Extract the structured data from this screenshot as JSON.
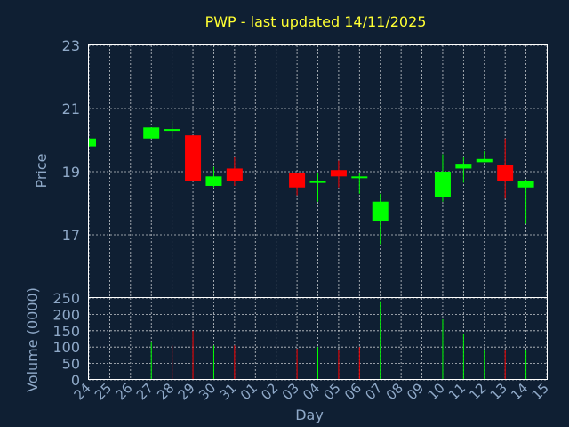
{
  "chart_data": {
    "title": "PWP - last updated 14/11/2025",
    "xlabel": "Day",
    "x": [
      "24",
      "25",
      "26",
      "27",
      "28",
      "29",
      "30",
      "31",
      "01",
      "02",
      "03",
      "04",
      "05",
      "06",
      "07",
      "08",
      "09",
      "10",
      "11",
      "12",
      "13",
      "14",
      "15"
    ],
    "price_panel": {
      "type": "candlestick",
      "ylabel": "Price",
      "ylim": [
        15,
        23
      ],
      "yticks": [
        "17",
        "19",
        "21",
        "23"
      ],
      "grid": true,
      "colors": {
        "up": "#00ff00",
        "down": "#ff0000"
      },
      "candles": [
        {
          "x": "24",
          "open": 19.8,
          "high": 20.05,
          "low": 19.8,
          "close": 20.05
        },
        {
          "x": "27",
          "open": 20.05,
          "high": 20.4,
          "low": 20.05,
          "close": 20.4
        },
        {
          "x": "28",
          "open": 20.35,
          "high": 20.6,
          "low": 20.05,
          "close": 20.35
        },
        {
          "x": "29",
          "open": 20.15,
          "high": 20.15,
          "low": 18.7,
          "close": 18.7
        },
        {
          "x": "30",
          "open": 18.55,
          "high": 19.15,
          "low": 18.5,
          "close": 18.85
        },
        {
          "x": "31",
          "open": 19.1,
          "high": 19.45,
          "low": 18.55,
          "close": 18.7
        },
        {
          "x": "03",
          "open": 18.95,
          "high": 18.95,
          "low": 18.25,
          "close": 18.5
        },
        {
          "x": "04",
          "open": 18.65,
          "high": 18.95,
          "low": 18.05,
          "close": 18.7
        },
        {
          "x": "05",
          "open": 19.05,
          "high": 19.35,
          "low": 18.5,
          "close": 18.85
        },
        {
          "x": "06",
          "open": 18.85,
          "high": 18.95,
          "low": 18.3,
          "close": 18.85
        },
        {
          "x": "07",
          "open": 17.45,
          "high": 18.3,
          "low": 16.7,
          "close": 18.05
        },
        {
          "x": "10",
          "open": 18.2,
          "high": 19.55,
          "low": 18.05,
          "close": 19.0
        },
        {
          "x": "11",
          "open": 19.1,
          "high": 19.45,
          "low": 18.65,
          "close": 19.25
        },
        {
          "x": "12",
          "open": 19.3,
          "high": 19.65,
          "low": 19.3,
          "close": 19.4
        },
        {
          "x": "13",
          "open": 19.2,
          "high": 20.05,
          "low": 18.15,
          "close": 18.7
        },
        {
          "x": "14",
          "open": 18.5,
          "high": 18.75,
          "low": 17.35,
          "close": 18.7
        }
      ]
    },
    "volume_panel": {
      "type": "bar",
      "ylabel": "Volume (0000)",
      "ylim": [
        0,
        250
      ],
      "yticks": [
        "0",
        "50",
        "100",
        "150",
        "200",
        "250"
      ],
      "grid": true,
      "bars": [
        {
          "x": "27",
          "value": 115,
          "color": "#00ff00"
        },
        {
          "x": "28",
          "value": 105,
          "color": "#ff0000"
        },
        {
          "x": "29",
          "value": 150,
          "color": "#ff0000"
        },
        {
          "x": "30",
          "value": 105,
          "color": "#00ff00"
        },
        {
          "x": "31",
          "value": 105,
          "color": "#ff0000"
        },
        {
          "x": "03",
          "value": 95,
          "color": "#ff0000"
        },
        {
          "x": "04",
          "value": 100,
          "color": "#00ff00"
        },
        {
          "x": "05",
          "value": 90,
          "color": "#ff0000"
        },
        {
          "x": "06",
          "value": 100,
          "color": "#ff0000"
        },
        {
          "x": "07",
          "value": 240,
          "color": "#00ff00"
        },
        {
          "x": "10",
          "value": 185,
          "color": "#00ff00"
        },
        {
          "x": "11",
          "value": 140,
          "color": "#00ff00"
        },
        {
          "x": "12",
          "value": 90,
          "color": "#00ff00"
        },
        {
          "x": "13",
          "value": 90,
          "color": "#ff0000"
        },
        {
          "x": "14",
          "value": 90,
          "color": "#00ff00"
        }
      ]
    }
  }
}
